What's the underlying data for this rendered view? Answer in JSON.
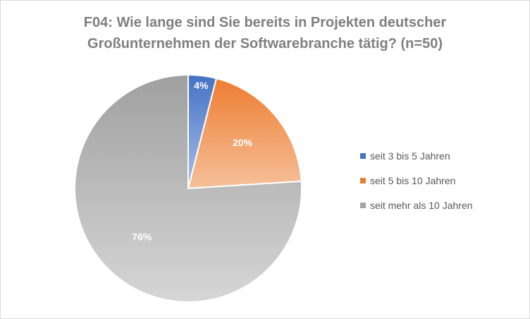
{
  "chart_data": {
    "type": "pie",
    "title_lines": [
      "F04: Wie lange sind Sie bereits in Projekten deutscher",
      "Großunternehmen der Softwarebranche tätig? (n=50)"
    ],
    "categories": [
      "seit 3 bis 5 Jahren",
      "seit 5 bis 10 Jahren",
      "seit mehr als 10 Jahren"
    ],
    "values": [
      4,
      20,
      76
    ],
    "labels": [
      "4%",
      "20%",
      "76%"
    ],
    "colors": [
      "#4472c4",
      "#ed7d31",
      "#a5a5a5"
    ],
    "legend_position": "right"
  }
}
